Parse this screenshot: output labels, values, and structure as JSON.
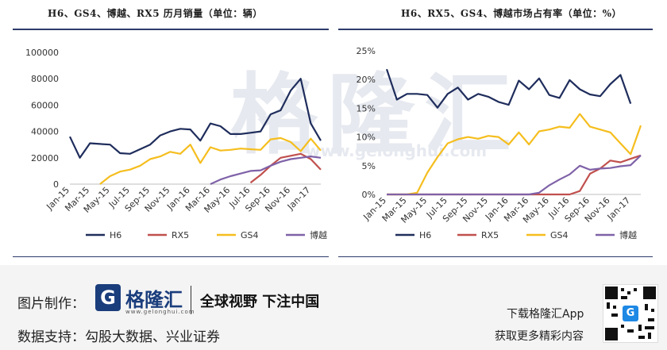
{
  "chart_data": [
    {
      "type": "line",
      "title": "H6、GS4、博越、RX5 历月销量（单位：辆）",
      "x": [
        "Jan-15",
        "Feb-15",
        "Mar-15",
        "Apr-15",
        "May-15",
        "Jun-15",
        "Jul-15",
        "Aug-15",
        "Sep-15",
        "Oct-15",
        "Nov-15",
        "Dec-15",
        "Jan-16",
        "Feb-16",
        "Mar-16",
        "Apr-16",
        "May-16",
        "Jun-16",
        "Jul-16",
        "Aug-16",
        "Sep-16",
        "Oct-16",
        "Nov-16",
        "Dec-16",
        "Jan-17",
        "Feb-17"
      ],
      "x_tick_labels": [
        "Jan-15",
        "Mar-15",
        "May-15",
        "Jul-15",
        "Sep-15",
        "Nov-15",
        "Jan-16",
        "Mar-16",
        "May-16",
        "Jul-16",
        "Sep-16",
        "Nov-16",
        "Jan-17"
      ],
      "ylim": [
        0,
        100000
      ],
      "y_ticks": [
        0,
        20000,
        40000,
        60000,
        80000,
        100000
      ],
      "y_tick_labels": [
        "0",
        "20000",
        "40000",
        "60000",
        "80000",
        "100000"
      ],
      "legend_position": "bottom",
      "series": [
        {
          "name": "H6",
          "color": "#1f2d5c",
          "values": [
            36000,
            20000,
            31000,
            30500,
            30000,
            23500,
            23000,
            26500,
            30000,
            37000,
            40000,
            42000,
            41500,
            33000,
            46000,
            44000,
            38000,
            38000,
            39000,
            40000,
            53000,
            56000,
            71000,
            80000,
            46000,
            33000
          ]
        },
        {
          "name": "RX5",
          "color": "#c0504d",
          "values": [
            null,
            null,
            null,
            null,
            null,
            null,
            null,
            null,
            null,
            null,
            null,
            null,
            null,
            null,
            null,
            null,
            null,
            null,
            1000,
            7000,
            14000,
            20000,
            21500,
            23000,
            19000,
            11000
          ]
        },
        {
          "name": "GS4",
          "color": "#f5be1e",
          "values": [
            null,
            null,
            null,
            0,
            6000,
            9500,
            11000,
            14000,
            19000,
            21000,
            24500,
            23000,
            30000,
            16000,
            28000,
            25500,
            26000,
            27000,
            26500,
            26000,
            34000,
            35000,
            32000,
            25000,
            34500,
            25500
          ]
        },
        {
          "name": "博越",
          "color": "#7f62a8",
          "values": [
            null,
            null,
            null,
            null,
            null,
            null,
            null,
            null,
            null,
            null,
            null,
            null,
            null,
            null,
            0,
            3500,
            6000,
            8000,
            10000,
            10500,
            14000,
            17000,
            19000,
            20000,
            21000,
            20000
          ]
        }
      ]
    },
    {
      "type": "line",
      "title": "H6、RX5、GS4、博越市场占有率（单位：%）",
      "x": [
        "Jan-15",
        "Feb-15",
        "Mar-15",
        "Apr-15",
        "May-15",
        "Jun-15",
        "Jul-15",
        "Aug-15",
        "Sep-15",
        "Oct-15",
        "Nov-15",
        "Dec-15",
        "Jan-16",
        "Feb-16",
        "Mar-16",
        "Apr-16",
        "May-16",
        "Jun-16",
        "Jul-16",
        "Aug-16",
        "Sep-16",
        "Oct-16",
        "Nov-16",
        "Dec-16",
        "Jan-17",
        "Feb-17"
      ],
      "x_tick_labels": [
        "Jan-15",
        "Mar-15",
        "May-15",
        "Jul-15",
        "Sep-15",
        "Nov-15",
        "Jan-16",
        "Mar-16",
        "May-16",
        "Jul-16",
        "Sep-16",
        "Nov-16",
        "Jan-17"
      ],
      "ylim": [
        0,
        25
      ],
      "y_ticks": [
        0,
        5,
        10,
        15,
        20,
        25
      ],
      "y_tick_labels": [
        "0%",
        "5%",
        "10%",
        "15%",
        "20%",
        "25%"
      ],
      "legend_position": "bottom",
      "series": [
        {
          "name": "H6",
          "color": "#1f2d5c",
          "values": [
            21.8,
            16.5,
            17.5,
            17.5,
            17.3,
            15.1,
            17.5,
            18.6,
            16.5,
            17.5,
            17.0,
            16.1,
            15.6,
            19.8,
            18.3,
            20.2,
            17.3,
            16.8,
            19.9,
            18.3,
            17.4,
            17.1,
            19.2,
            20.8,
            15.8,
            null
          ]
        },
        {
          "name": "RX5",
          "color": "#c0504d",
          "values": [
            0,
            0,
            0,
            0,
            0,
            0,
            0,
            0,
            0,
            0,
            0,
            0,
            0,
            0,
            0,
            0,
            0,
            0,
            0,
            0.6,
            3.6,
            4.5,
            5.9,
            5.6,
            6.2,
            6.8
          ]
        },
        {
          "name": "GS4",
          "color": "#f5be1e",
          "values": [
            0,
            0,
            0,
            0.3,
            3.8,
            6.5,
            8.9,
            9.6,
            10.0,
            9.7,
            10.2,
            10.0,
            8.7,
            10.8,
            8.7,
            11.0,
            11.3,
            11.8,
            11.6,
            14.0,
            11.8,
            11.3,
            10.8,
            8.9,
            7.0,
            12.0
          ]
        },
        {
          "name": "博越",
          "color": "#7f62a8",
          "values": [
            0,
            0,
            0,
            0,
            0,
            0,
            0,
            0,
            0,
            0,
            0,
            0,
            0,
            0,
            0,
            0.3,
            1.6,
            2.6,
            3.5,
            5.0,
            4.3,
            4.5,
            4.6,
            4.9,
            5.1,
            6.8
          ]
        }
      ]
    }
  ],
  "watermark": {
    "chars": "格隆汇",
    "url": "www.gelonghui.com"
  },
  "footer": {
    "maker_label": "图片制作：",
    "logo_mark": "G",
    "logo_text": "格隆汇",
    "logo_sub": "www.gelonghui.com",
    "slogan": "全球视野 下注中国",
    "support_label": "数据支持：",
    "support_sources": "勾股大数据、兴业证券",
    "download_line1": "下载格隆汇App",
    "download_line2": "获取更多精彩内容",
    "qr_center": "G"
  }
}
